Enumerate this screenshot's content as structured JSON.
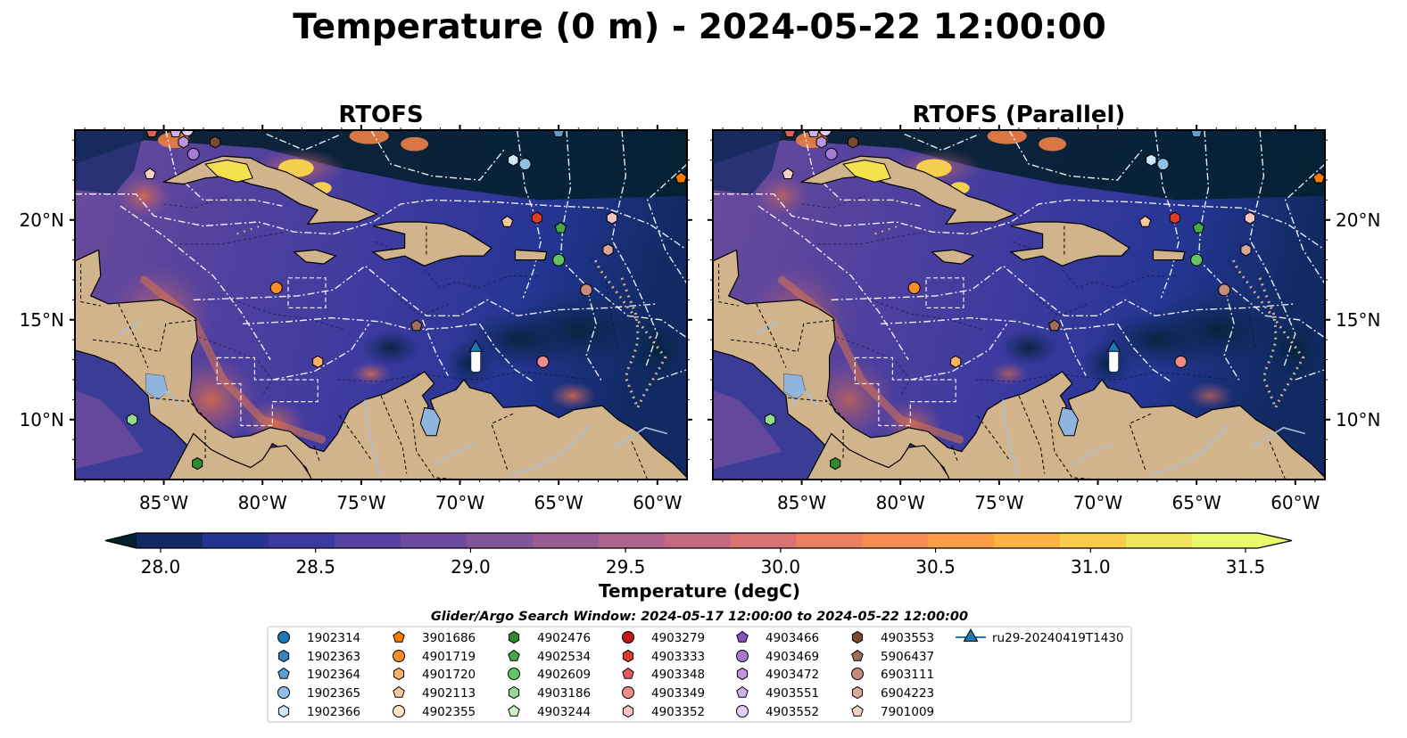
{
  "suptitle": "Temperature (0 m) - 2024-05-22 12:00:00",
  "colors": {
    "land": "#d2b48c",
    "lake": "#8fb4de",
    "river": "#a3bfd9",
    "colormap": [
      "#04202f",
      "#112a63",
      "#243592",
      "#3d3a9f",
      "#55419f",
      "#6c4b9e",
      "#81559a",
      "#985c95",
      "#ae638c",
      "#c46a80",
      "#d97371",
      "#ea7f61",
      "#f58d52",
      "#fb9d47",
      "#fdb245",
      "#f9cb4c",
      "#f0e45c",
      "#e8fa6b"
    ],
    "eez": "#ffffff"
  },
  "chart_data": [
    {
      "type": "heatmap",
      "title": "RTOFS",
      "xticks": [
        "85°W",
        "80°W",
        "75°W",
        "70°W",
        "65°W",
        "60°W"
      ],
      "yticks": [
        "20°N",
        "15°N",
        "10°N"
      ],
      "xlim": [
        -89.5,
        -58.5
      ],
      "ylim": [
        7.0,
        24.5
      ],
      "ytick_side": "left"
    },
    {
      "type": "heatmap",
      "title": "RTOFS (Parallel)",
      "xticks": [
        "85°W",
        "80°W",
        "75°W",
        "70°W",
        "65°W",
        "60°W"
      ],
      "yticks": [
        "20°N",
        "15°N",
        "10°N"
      ],
      "xlim": [
        -89.5,
        -58.5
      ],
      "ylim": [
        7.0,
        24.5
      ],
      "ytick_side": "right"
    }
  ],
  "colorbar": {
    "label": "Temperature (degC)",
    "range": [
      28.0,
      31.5
    ],
    "ticks": [
      "28.0",
      "28.5",
      "29.0",
      "29.5",
      "30.0",
      "30.5",
      "31.0",
      "31.5"
    ],
    "extend": "both"
  },
  "legend": {
    "title": "Glider/Argo Search Window: 2024-05-17 12:00:00 to 2024-05-22 12:00:00",
    "entries": [
      {
        "label": "1902314",
        "marker": "circle",
        "color": "#1f77b4",
        "lon": -88.5,
        "lat": 25.5
      },
      {
        "label": "1902363",
        "marker": "hexagon",
        "color": "#3a84c1",
        "lon": -87.2,
        "lat": 25.5
      },
      {
        "label": "1902364",
        "marker": "pentagon",
        "color": "#5b9ed3",
        "lon": -65.0,
        "lat": 24.4
      },
      {
        "label": "1902365",
        "marker": "circle",
        "color": "#8ec0e9",
        "lon": -66.7,
        "lat": 22.8
      },
      {
        "label": "1902366",
        "marker": "hexagon",
        "color": "#cfe5f8",
        "lon": -67.3,
        "lat": 23.0
      },
      {
        "label": "3901686",
        "marker": "pentagon",
        "color": "#f57c00",
        "lon": -58.8,
        "lat": 22.1
      },
      {
        "label": "4901719",
        "marker": "circle",
        "color": "#fb8c2a",
        "lon": -79.3,
        "lat": 16.6
      },
      {
        "label": "4901720",
        "marker": "hexagon",
        "color": "#fdb064",
        "lon": -77.2,
        "lat": 12.9
      },
      {
        "label": "4902113",
        "marker": "pentagon",
        "color": "#fcc79a",
        "lon": -67.6,
        "lat": 19.9
      },
      {
        "label": "4902355",
        "marker": "circle",
        "color": "#fee3c8",
        "lon": -83.4,
        "lat": 25.3
      },
      {
        "label": "4902476",
        "marker": "hexagon",
        "color": "#2e8b2e",
        "lon": -83.3,
        "lat": 7.8
      },
      {
        "label": "4902534",
        "marker": "pentagon",
        "color": "#46a846",
        "lon": -64.9,
        "lat": 19.6
      },
      {
        "label": "4902609",
        "marker": "circle",
        "color": "#63c463",
        "lon": -65.0,
        "lat": 18.0
      },
      {
        "label": "4903186",
        "marker": "hexagon",
        "color": "#93dc8e",
        "lon": -86.6,
        "lat": 10.0
      },
      {
        "label": "4903244",
        "marker": "pentagon",
        "color": "#cff2c8",
        "lon": -87.1,
        "lat": 25.8
      },
      {
        "label": "4903279",
        "marker": "circle",
        "color": "#c21a1a",
        "lon": -84.8,
        "lat": 25.4
      },
      {
        "label": "4903333",
        "marker": "hexagon",
        "color": "#dc3c2a",
        "lon": -66.1,
        "lat": 20.1
      },
      {
        "label": "4903348",
        "marker": "pentagon",
        "color": "#e55a5a",
        "lon": -85.6,
        "lat": 24.4
      },
      {
        "label": "4903349",
        "marker": "circle",
        "color": "#f08c8c",
        "lon": -65.8,
        "lat": 12.9
      },
      {
        "label": "4903352",
        "marker": "hexagon",
        "color": "#f6c2c2",
        "lon": -62.3,
        "lat": 20.1
      },
      {
        "label": "4903466",
        "marker": "pentagon",
        "color": "#8a52c0",
        "lon": -89.0,
        "lat": 25.0
      },
      {
        "label": "4903469",
        "marker": "circle",
        "color": "#a77ad6",
        "lon": -83.5,
        "lat": 23.3
      },
      {
        "label": "4903472",
        "marker": "hexagon",
        "color": "#bb95e0",
        "lon": -84.0,
        "lat": 23.9
      },
      {
        "label": "4903551",
        "marker": "pentagon",
        "color": "#cfb0ec",
        "lon": -84.4,
        "lat": 24.4
      },
      {
        "label": "4903552",
        "marker": "circle",
        "color": "#e3cdf4",
        "lon": -83.8,
        "lat": 24.5
      },
      {
        "label": "4903553",
        "marker": "hexagon",
        "color": "#7a4a35",
        "lon": -82.4,
        "lat": 23.9
      },
      {
        "label": "5906437",
        "marker": "pentagon",
        "color": "#a06e5c",
        "lon": -72.2,
        "lat": 14.7
      },
      {
        "label": "6903111",
        "marker": "circle",
        "color": "#c48b7c",
        "lon": -63.6,
        "lat": 16.5
      },
      {
        "label": "6904223",
        "marker": "hexagon",
        "color": "#d8a89a",
        "lon": -62.5,
        "lat": 18.5
      },
      {
        "label": "7901009",
        "marker": "pentagon",
        "color": "#f6d0c4",
        "lon": -85.7,
        "lat": 22.3
      },
      {
        "label": "ru29-20240419T1430",
        "marker": "triangle",
        "color": "#1f77b4",
        "lon": -69.2,
        "lat": 13.6
      }
    ]
  }
}
